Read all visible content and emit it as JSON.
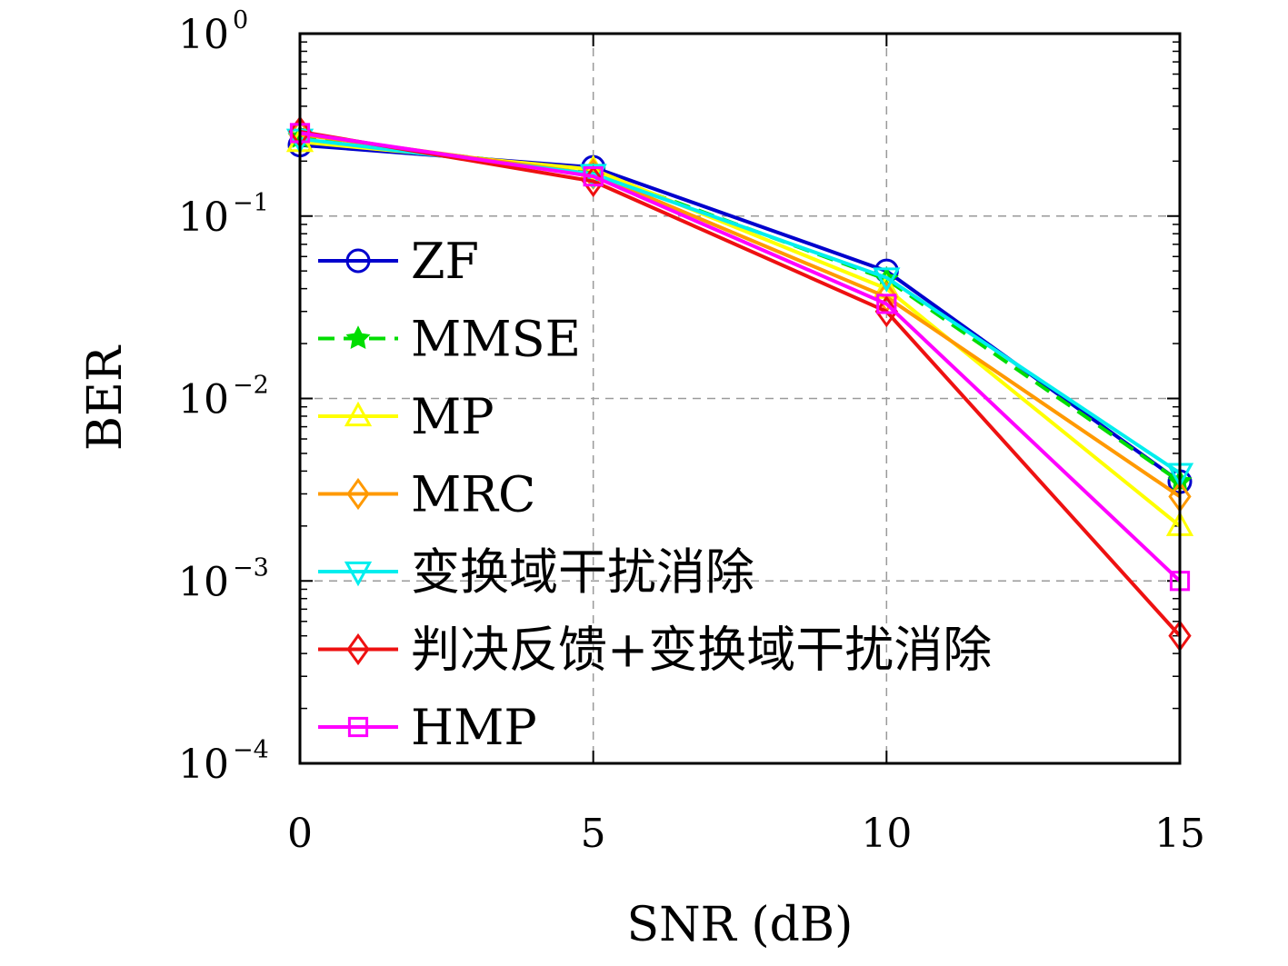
{
  "chart_data": {
    "type": "line",
    "title": "",
    "xlabel": "SNR (dB)",
    "ylabel": "BER",
    "x": [
      0,
      5,
      10,
      15
    ],
    "xlim": [
      0,
      15
    ],
    "ylim": [
      0.0001,
      1
    ],
    "yscale": "log",
    "x_ticks": [
      {
        "value": 0,
        "label": "0"
      },
      {
        "value": 5,
        "label": "5"
      },
      {
        "value": 10,
        "label": "10"
      },
      {
        "value": 15,
        "label": "15"
      }
    ],
    "y_ticks": [
      {
        "value": 1,
        "base": "10",
        "exp": "0"
      },
      {
        "value": 0.1,
        "base": "10",
        "exp": "−1"
      },
      {
        "value": 0.01,
        "base": "10",
        "exp": "−2"
      },
      {
        "value": 0.001,
        "base": "10",
        "exp": "−3"
      },
      {
        "value": 0.0001,
        "base": "10",
        "exp": "−4"
      }
    ],
    "grid": true,
    "legend_position": "left",
    "series": [
      {
        "name": "ZF",
        "color": "#0000cd",
        "marker": "circle",
        "dashed": false,
        "values": [
          0.245,
          0.185,
          0.05,
          0.0035
        ]
      },
      {
        "name": "MMSE",
        "color": "#00dd00",
        "marker": "star",
        "dashed": true,
        "values": [
          0.27,
          0.175,
          0.045,
          0.0035
        ]
      },
      {
        "name": "MP",
        "color": "#ffff00",
        "marker": "triangle-up",
        "dashed": false,
        "values": [
          0.255,
          0.18,
          0.04,
          0.002
        ]
      },
      {
        "name": "MRC",
        "color": "#ff9900",
        "marker": "diamond",
        "dashed": false,
        "values": [
          0.28,
          0.17,
          0.036,
          0.0029
        ]
      },
      {
        "name": "变换域干扰消除",
        "color": "#00eeee",
        "marker": "triangle-down",
        "dashed": false,
        "values": [
          0.265,
          0.17,
          0.046,
          0.0039
        ]
      },
      {
        "name": "判决反馈+变换域干扰消除",
        "color": "#ee1111",
        "marker": "diamond",
        "dashed": false,
        "values": [
          0.29,
          0.155,
          0.03,
          0.0005
        ]
      },
      {
        "name": "HMP",
        "color": "#ff00ff",
        "marker": "square",
        "dashed": false,
        "values": [
          0.285,
          0.165,
          0.033,
          0.001
        ]
      }
    ]
  }
}
